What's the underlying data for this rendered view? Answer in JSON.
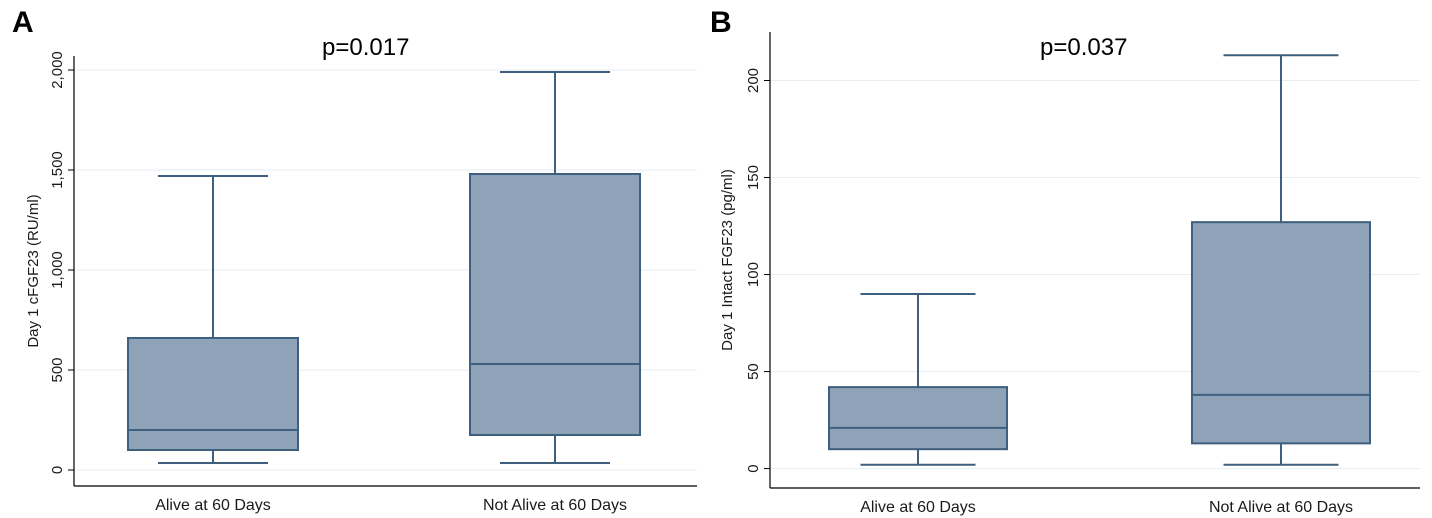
{
  "figure": {
    "panels": [
      {
        "label": "A",
        "pvalue": "p=0.017"
      },
      {
        "label": "B",
        "pvalue": "p=0.037"
      }
    ]
  },
  "colors": {
    "box_fill": "#8fa3b8",
    "box_stroke": "#3f5f7f",
    "grid": "#e6eef2",
    "axis": "#000000"
  },
  "chart_data": [
    {
      "type": "box",
      "title": "",
      "ylabel": "Day 1 cFGF23 (RU/ml)",
      "xlabel": "",
      "ylim": [
        -80,
        2070
      ],
      "yticks": [
        0,
        500,
        1000,
        1500,
        2000
      ],
      "ytick_labels": [
        "0",
        "500",
        "1,000",
        "1,500",
        "2,000"
      ],
      "grid": true,
      "categories": [
        "Alive at 60 Days",
        "Not Alive at 60 Days"
      ],
      "boxes": [
        {
          "whisker_low": 35,
          "q1": 100,
          "median": 200,
          "q3": 660,
          "whisker_high": 1470
        },
        {
          "whisker_low": 35,
          "q1": 175,
          "median": 530,
          "q3": 1480,
          "whisker_high": 1990
        }
      ]
    },
    {
      "type": "box",
      "title": "",
      "ylabel": "Day 1 Intact FGF23 (pg/ml)",
      "xlabel": "",
      "ylim": [
        -10,
        225
      ],
      "yticks": [
        0,
        50,
        100,
        150,
        200
      ],
      "ytick_labels": [
        "0",
        "50",
        "100",
        "150",
        "200"
      ],
      "grid": true,
      "categories": [
        "Alive at 60 Days",
        "Not Alive at 60 Days"
      ],
      "boxes": [
        {
          "whisker_low": 2,
          "q1": 10,
          "median": 21,
          "q3": 42,
          "whisker_high": 90
        },
        {
          "whisker_low": 2,
          "q1": 13,
          "median": 38,
          "q3": 127,
          "whisker_high": 213
        }
      ]
    }
  ]
}
